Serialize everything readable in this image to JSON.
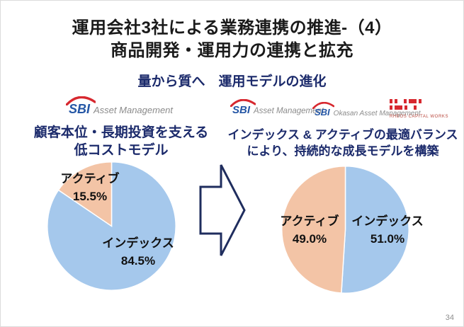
{
  "page": {
    "title_line1": "運用会社3社による業務連携の推進-（4）",
    "title_line2": "商品開発・運用力の連携と拡充",
    "subtitle": "量から質へ　運用モデルの進化",
    "page_number": "34"
  },
  "left_panel": {
    "logo": {
      "sbi": "SBI",
      "suffix": "Asset Management"
    },
    "heading_line1": "顧客本位・長期投資を支える",
    "heading_line2": "低コストモデル"
  },
  "right_panel": {
    "logos": [
      {
        "sbi": "SBI",
        "suffix": "Asset Management"
      },
      {
        "sbi": "SBI",
        "suffix": "Okasan Asset Management"
      },
      {
        "text": "RHEOS CAPITAL WORKS"
      }
    ],
    "heading_line1": "インデックス & アクティブの最適バランス",
    "heading_line2": "により、持続的な成長モデルを構築"
  },
  "colors": {
    "index_blue": "#a5c8ec",
    "active_salmon": "#f3c4a6",
    "navy_text": "#1b2a6b",
    "sbi_blue": "#2456a5",
    "sbi_red": "#d7282f",
    "arrow_outline": "#1f2d5e"
  },
  "chart_data": [
    {
      "type": "pie",
      "title": "顧客本位・長期投資を支える低コストモデル",
      "labels": [
        "インデックス",
        "アクティブ"
      ],
      "values": [
        84.5,
        15.5
      ],
      "colors": [
        "#a5c8ec",
        "#f3c4a6"
      ],
      "start_angle_deg": 0,
      "direction": "clockwise",
      "legend_position": "inside"
    },
    {
      "type": "pie",
      "title": "インデックス & アクティブの最適バランスにより、持続的な成長モデルを構築",
      "labels": [
        "インデックス",
        "アクティブ"
      ],
      "values": [
        51.0,
        49.0
      ],
      "colors": [
        "#a5c8ec",
        "#f3c4a6"
      ],
      "start_angle_deg": 0,
      "direction": "clockwise",
      "legend_position": "inside"
    }
  ]
}
